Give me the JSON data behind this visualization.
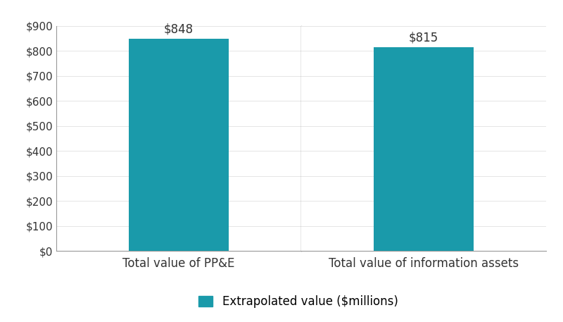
{
  "categories": [
    "Total value of PP&E",
    "Total value of information assets"
  ],
  "values": [
    848,
    815
  ],
  "bar_color": "#1a9aaa",
  "bar_labels": [
    "$848",
    "$815"
  ],
  "ylim": [
    0,
    900
  ],
  "yticks": [
    0,
    100,
    200,
    300,
    400,
    500,
    600,
    700,
    800,
    900
  ],
  "ytick_labels": [
    "$0",
    "$100",
    "$200",
    "$300",
    "$400",
    "$500",
    "$600",
    "$700",
    "$800",
    "$900"
  ],
  "legend_label": "Extrapolated value ($millions)",
  "bar_width": 0.45,
  "label_fontsize": 12,
  "tick_fontsize": 11,
  "annotation_fontsize": 12,
  "background_color": "#ffffff",
  "divider_color": "#888888",
  "tick_color": "#333333",
  "spine_color": "#999999"
}
